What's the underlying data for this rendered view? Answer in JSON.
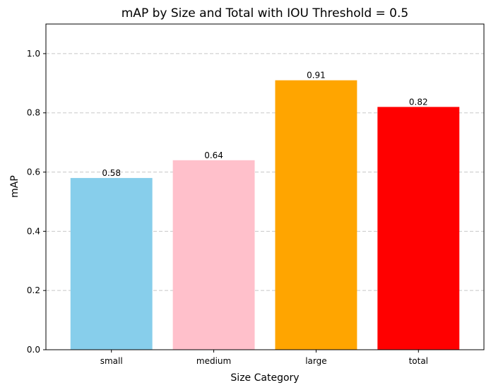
{
  "chart_data": {
    "type": "bar",
    "title": "mAP by Size and Total with IOU Threshold = 0.5",
    "xlabel": "Size Category",
    "ylabel": "mAP",
    "categories": [
      "small",
      "medium",
      "large",
      "total"
    ],
    "values": [
      0.58,
      0.64,
      0.91,
      0.82
    ],
    "data_labels": [
      "0.58",
      "0.64",
      "0.91",
      "0.82"
    ],
    "colors": [
      "#87ceeb",
      "#ffc0cb",
      "#ffa500",
      "#ff0000"
    ],
    "ylim": [
      0,
      1.1
    ],
    "yticks": [
      0.0,
      0.2,
      0.4,
      0.6,
      0.8,
      1.0
    ],
    "ytick_labels": [
      "0.0",
      "0.2",
      "0.4",
      "0.6",
      "0.8",
      "1.0"
    ],
    "grid": "y-dashed"
  }
}
